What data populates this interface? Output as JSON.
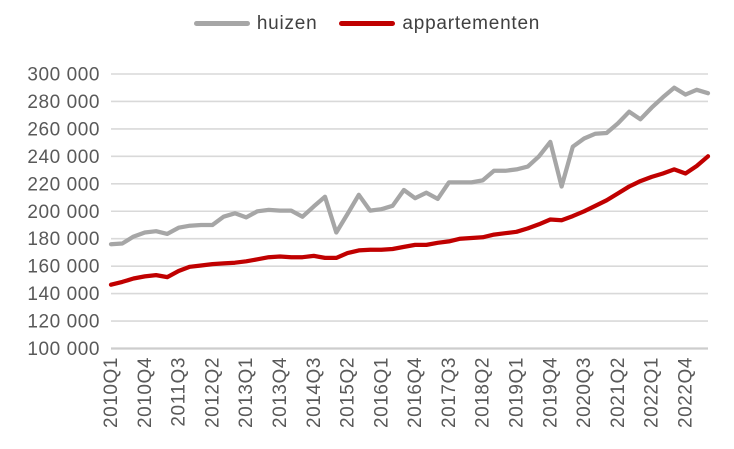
{
  "legend": {
    "items": [
      {
        "label": "huizen",
        "color": "#a6a6a6"
      },
      {
        "label": "appartementen",
        "color": "#c00000"
      }
    ]
  },
  "chart_data": {
    "type": "line",
    "title": "",
    "xlabel": "",
    "ylabel": "",
    "grid": "horizontal",
    "legend_position": "top",
    "ylim": [
      100000,
      300000
    ],
    "y_tick_step": 20000,
    "y_ticks": [
      100000,
      120000,
      140000,
      160000,
      180000,
      200000,
      220000,
      240000,
      260000,
      280000,
      300000
    ],
    "y_tick_labels": [
      "100 000",
      "120 000",
      "140 000",
      "160 000",
      "180 000",
      "200 000",
      "220 000",
      "240 000",
      "260 000",
      "280 000",
      "300 000"
    ],
    "x_tick_interval": 3,
    "x_tick_max_index": 51,
    "x_tick_labels": [
      "2010Q1",
      "2010Q4",
      "2011Q3",
      "2012Q2",
      "2013Q1",
      "2013Q4",
      "2014Q3",
      "2015Q2",
      "2016Q1",
      "2016Q4",
      "2017Q3",
      "2018Q2",
      "2019Q1",
      "2019Q4",
      "2020Q3",
      "2021Q2",
      "2022Q1",
      "2022Q4"
    ],
    "categories": [
      "2010Q1",
      "2010Q2",
      "2010Q3",
      "2010Q4",
      "2011Q1",
      "2011Q2",
      "2011Q3",
      "2011Q4",
      "2012Q1",
      "2012Q2",
      "2012Q3",
      "2012Q4",
      "2013Q1",
      "2013Q2",
      "2013Q3",
      "2013Q4",
      "2014Q1",
      "2014Q2",
      "2014Q3",
      "2014Q4",
      "2015Q1",
      "2015Q2",
      "2015Q3",
      "2015Q4",
      "2016Q1",
      "2016Q2",
      "2016Q3",
      "2016Q4",
      "2017Q1",
      "2017Q2",
      "2017Q3",
      "2017Q4",
      "2018Q1",
      "2018Q2",
      "2018Q3",
      "2018Q4",
      "2019Q1",
      "2019Q2",
      "2019Q3",
      "2019Q4",
      "2020Q1",
      "2020Q2",
      "2020Q3",
      "2020Q4",
      "2021Q1",
      "2021Q2",
      "2021Q3",
      "2021Q4",
      "2022Q1",
      "2022Q2",
      "2022Q3",
      "2022Q4",
      "2023Q1",
      "2023Q2"
    ],
    "series": [
      {
        "name": "huizen",
        "color": "#a6a6a6",
        "values": [
          176000,
          176500,
          181500,
          184500,
          185500,
          183500,
          188000,
          189500,
          190000,
          190000,
          196000,
          198500,
          195500,
          200000,
          201000,
          200500,
          200500,
          196000,
          203500,
          210500,
          184500,
          198000,
          212000,
          200500,
          201500,
          204000,
          215500,
          209500,
          213500,
          209000,
          221000,
          221000,
          221000,
          222500,
          229500,
          229500,
          230500,
          232500,
          240000,
          250500,
          218000,
          247000,
          253000,
          256500,
          257000,
          264000,
          272500,
          267000,
          275500,
          283000,
          290000,
          285000,
          288500,
          286000
        ]
      },
      {
        "name": "appartementen",
        "color": "#c00000",
        "values": [
          146500,
          148500,
          151000,
          152500,
          153500,
          152000,
          156500,
          159500,
          160500,
          161500,
          162000,
          162500,
          163500,
          165000,
          166500,
          167000,
          166500,
          166500,
          167500,
          166000,
          166000,
          169500,
          171500,
          172000,
          172000,
          172500,
          174000,
          175500,
          175500,
          177000,
          178000,
          180000,
          180500,
          181000,
          183000,
          184000,
          185000,
          187500,
          190500,
          194000,
          193500,
          196500,
          200000,
          204000,
          208000,
          213000,
          218000,
          222000,
          225000,
          227500,
          230500,
          227500,
          233000,
          240000
        ]
      }
    ]
  }
}
